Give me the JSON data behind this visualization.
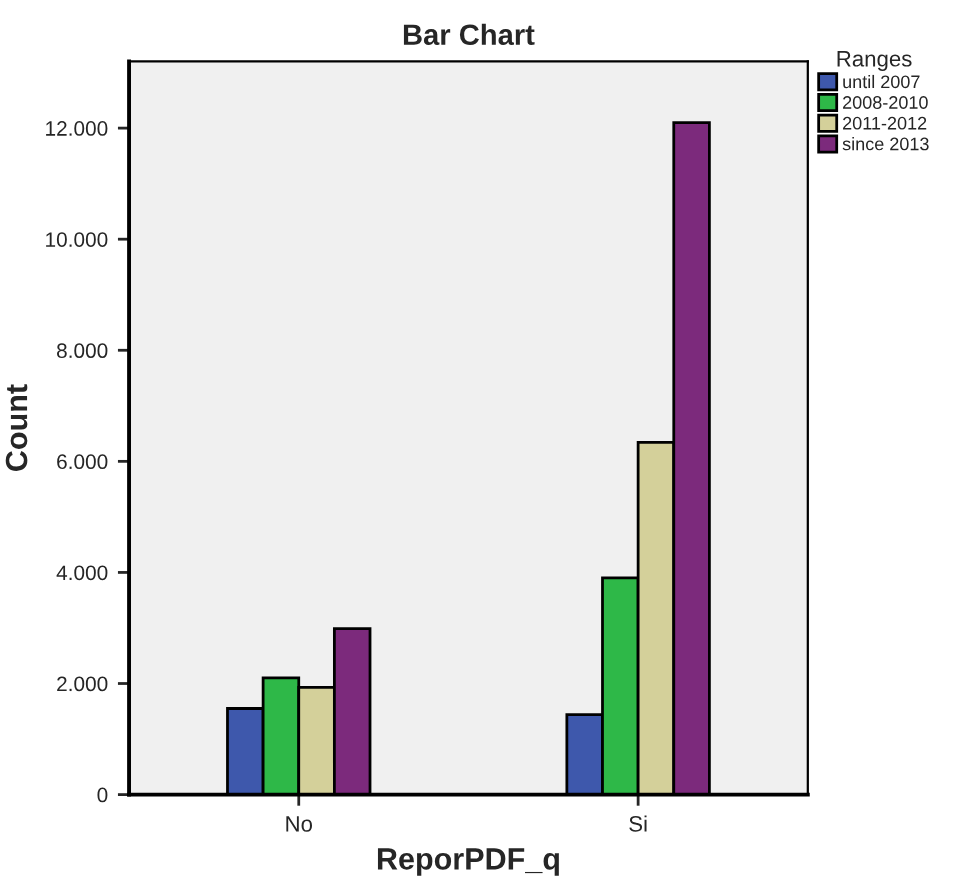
{
  "chart_data": {
    "type": "bar",
    "title": "Bar Chart",
    "xlabel": "ReporPDF_q",
    "ylabel": "Count",
    "legend_title": "Ranges",
    "categories": [
      "No",
      "Si"
    ],
    "series": [
      {
        "name": "until 2007",
        "color": "#3e58ac",
        "values": [
          1550,
          1440
        ]
      },
      {
        "name": "2008-2010",
        "color": "#2eb848",
        "values": [
          2100,
          3900
        ]
      },
      {
        "name": "2011-2012",
        "color": "#d4d09a",
        "values": [
          1930,
          6340
        ]
      },
      {
        "name": "since 2013",
        "color": "#7c2a7c",
        "values": [
          2990,
          12100
        ]
      }
    ],
    "ylim": [
      0,
      13200
    ],
    "yticks": [
      0,
      {
        "value": 2000,
        "label": "2.000"
      },
      {
        "value": 4000,
        "label": "4.000"
      },
      {
        "value": 6000,
        "label": "6.000"
      },
      {
        "value": 8000,
        "label": "8.000"
      },
      {
        "value": 10000,
        "label": "10.000"
      },
      {
        "value": 12000,
        "label": "12.000"
      }
    ],
    "grid": false,
    "legend": "top right"
  }
}
